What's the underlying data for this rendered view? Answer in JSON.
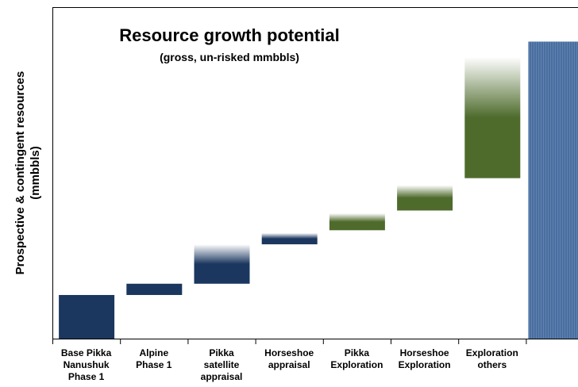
{
  "chart_data": {
    "type": "bar",
    "subtype": "waterfall",
    "title": "Resource growth potential",
    "subtitle": "(gross, un-risked mmbbls)",
    "xlabel": "",
    "ylabel": "Prospective & contingent resources (mmbbls)",
    "y_tick_labels": false,
    "grid": false,
    "legend": "none",
    "ylim": [
      0,
      100
    ],
    "categories": [
      "Base Pikka Nanushuk Phase 1",
      "Alpine Phase 1",
      "Pikka satellite appraisal",
      "Horseshoe appraisal",
      "Pikka Exploration",
      "Horseshoe Exploration",
      "Exploration others",
      ""
    ],
    "tick_label_lines": [
      [
        "Base Pikka",
        "Nanushuk",
        "Phase 1"
      ],
      [
        "Alpine",
        "Phase 1"
      ],
      [
        "Pikka",
        "satellite",
        "appraisal"
      ],
      [
        "Horseshoe",
        "appraisal"
      ],
      [
        "Pikka",
        "Exploration"
      ],
      [
        "Horseshoe",
        "Exploration"
      ],
      [
        "Exploration",
        "others"
      ],
      []
    ],
    "bars": [
      {
        "start": 0,
        "end": 15.5,
        "style": "solid",
        "color": "#1b375f"
      },
      {
        "start": 15.5,
        "end": 19.5,
        "style": "solid",
        "color": "#1b375f"
      },
      {
        "start": 19.5,
        "end": 33.5,
        "style": "fade",
        "color": "#1b375f"
      },
      {
        "start": 33.5,
        "end": 37.5,
        "style": "fade",
        "color": "#1b375f"
      },
      {
        "start": 38.5,
        "end": 44.5,
        "style": "fade",
        "color": "#4e6b2c"
      },
      {
        "start": 45.5,
        "end": 54.5,
        "style": "fade",
        "color": "#4e6b2c"
      },
      {
        "start": 57,
        "end": 100,
        "style": "fade",
        "color": "#4e6b2c"
      },
      {
        "start": 0,
        "end": 105.5,
        "style": "hatched",
        "color": "#4a6e9f"
      }
    ]
  }
}
